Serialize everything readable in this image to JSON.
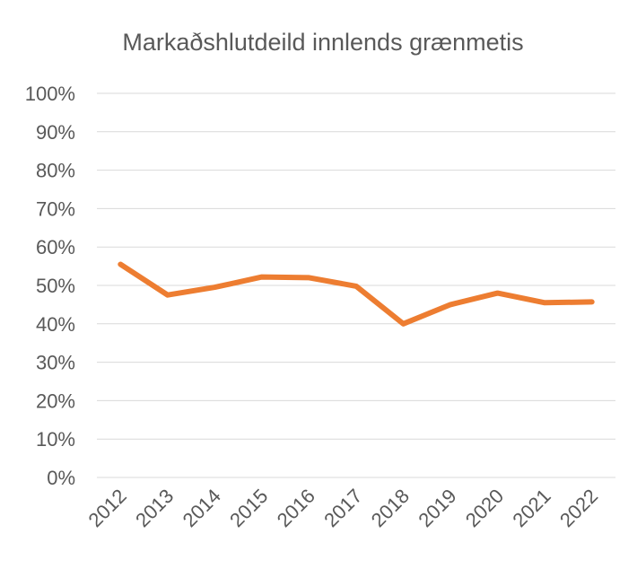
{
  "chart_data": {
    "type": "line",
    "title": "Markaðshlutdeild innlends grænmetis",
    "xlabel": "",
    "ylabel": "",
    "categories": [
      "2012",
      "2013",
      "2014",
      "2015",
      "2016",
      "2017",
      "2018",
      "2019",
      "2020",
      "2021",
      "2022"
    ],
    "series": [
      {
        "color": "#ED7D31",
        "values": [
          55.5,
          47.5,
          49.5,
          52.2,
          52.0,
          49.8,
          40.0,
          45.0,
          48.0,
          45.5,
          45.7
        ]
      }
    ],
    "ylim": [
      0,
      100
    ],
    "yticks": [
      0,
      10,
      20,
      30,
      40,
      50,
      60,
      70,
      80,
      90,
      100
    ],
    "ytick_labels": [
      "0%",
      "10%",
      "20%",
      "30%",
      "40%",
      "50%",
      "60%",
      "70%",
      "80%",
      "90%",
      "100%"
    ],
    "grid": true,
    "legend": "none"
  }
}
